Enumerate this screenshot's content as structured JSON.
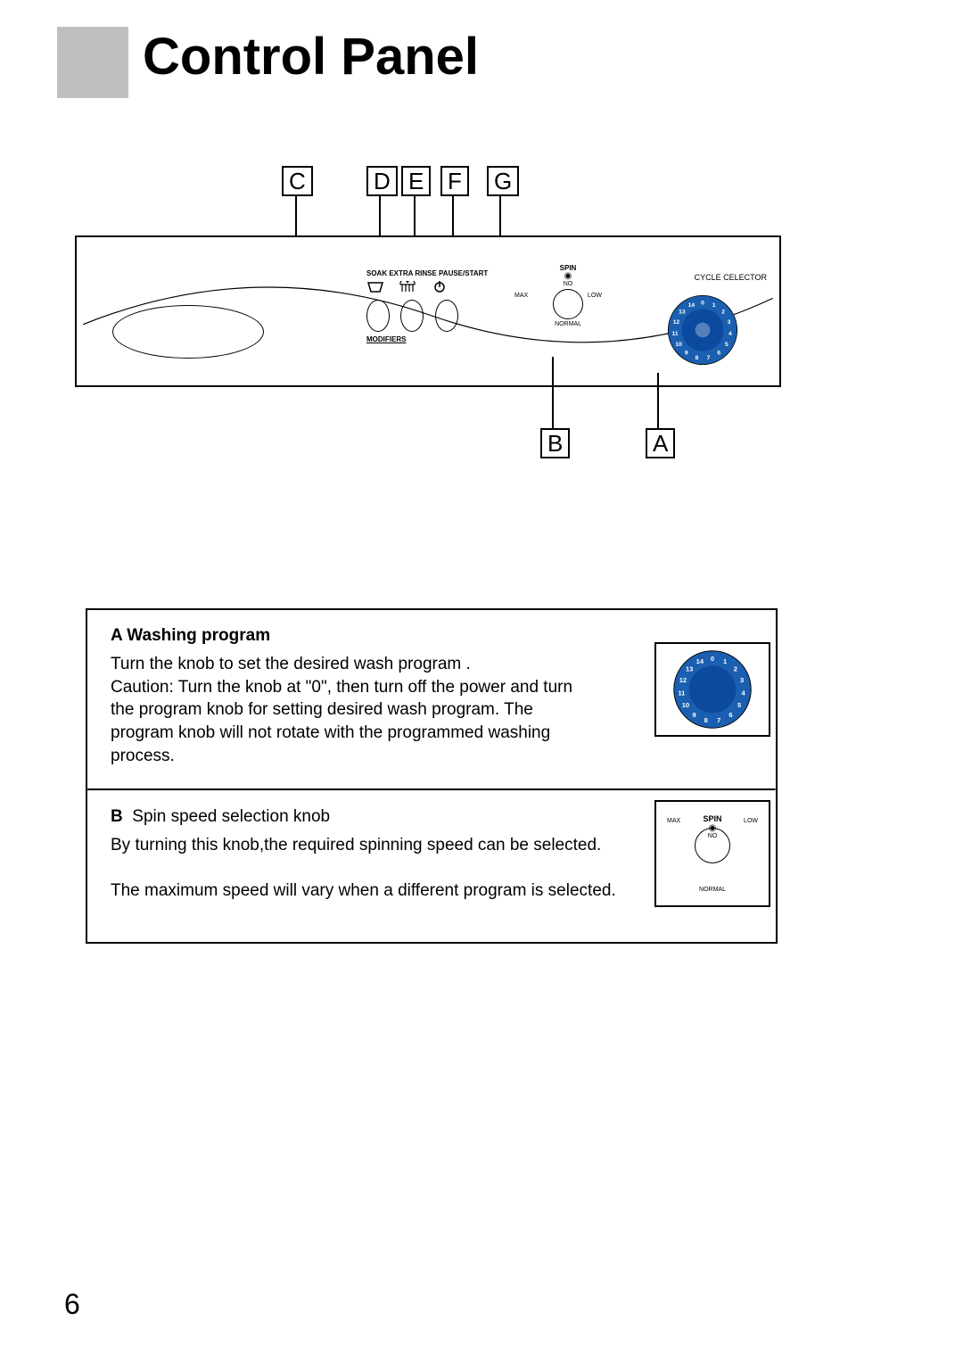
{
  "title": "Control Panel",
  "callouts_top": {
    "c": "C",
    "d": "D",
    "e": "E",
    "f": "F",
    "g": "G"
  },
  "callouts_bottom": {
    "b": "B",
    "a": "A"
  },
  "panel": {
    "mod_labels": "SOAK   EXTRA RINSE PAUSE/START",
    "modifiers_caption": "MODIFIERS",
    "spin_title": "SPIN",
    "spin_no": "NO",
    "spin_max": "MAX",
    "spin_low": "LOW",
    "spin_normal": "NORMAL",
    "cycle_label": "CYCLE CELECTOR",
    "dial": {
      "outer_fill": "#1a5fb0",
      "inner_fill": "#0b4a9e",
      "tick_color": "#ffffff",
      "numbers": [
        "0",
        "1",
        "2",
        "3",
        "4",
        "5",
        "6",
        "7",
        "8",
        "9",
        "10",
        "11",
        "12",
        "13",
        "14"
      ]
    }
  },
  "sectionA": {
    "heading": "A  Washing program",
    "line1": "Turn the knob to set the desired wash program .",
    "caution_label": "Caution:",
    "caution_text": "Turn the knob at \"0\", then turn off the power and turn the program knob for setting desired wash program. The program knob will not rotate with the programmed washing process."
  },
  "sectionB": {
    "heading_letter": "B",
    "heading_rest": "Spin speed selection knob",
    "line1": "By turning this knob,the required spinning speed can be selected.",
    "line2": "The maximum speed will vary when a different program is selected."
  },
  "page_number": "6"
}
